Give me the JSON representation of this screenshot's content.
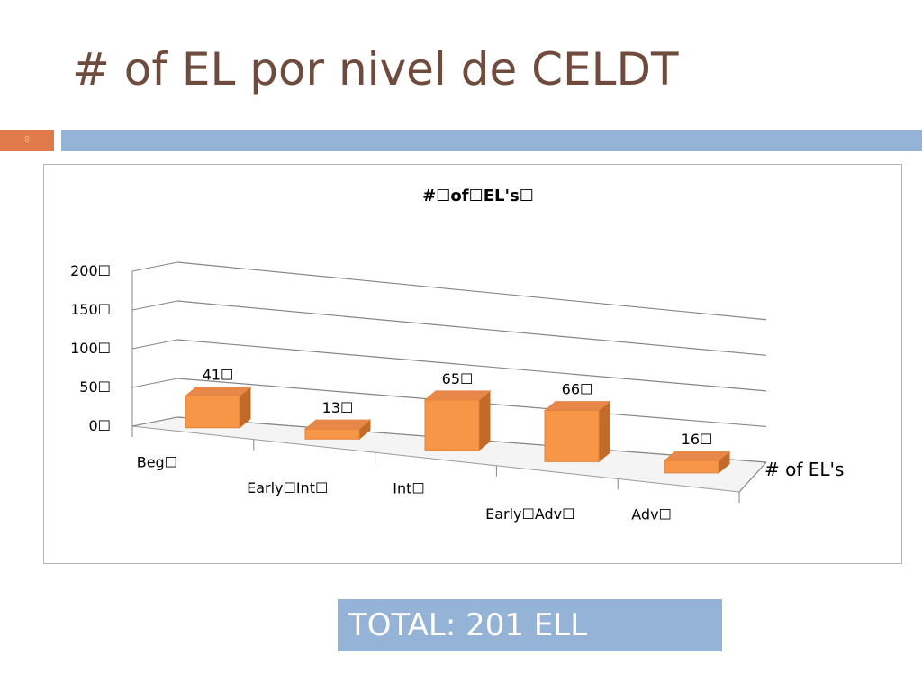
{
  "slide": {
    "title": "# of EL por nivel de CELDT",
    "number": "8",
    "total_label": "TOTAL: 201 ELL"
  },
  "colors": {
    "title": "#6f4b3e",
    "accent": "#e07a4a",
    "rule": "#95b3d7",
    "bar_front": "#f79646",
    "bar_top": "#e7884a",
    "bar_side": "#c26a27",
    "gridline": "#868686"
  },
  "chart_data": {
    "type": "bar",
    "title": "#☐of☐EL's☐",
    "categories": [
      "Beg☐",
      "Early☐Int☐",
      "Int☐",
      "Early☐Adv☐",
      "Adv☐"
    ],
    "series": [
      {
        "name": "# of EL's",
        "values": [
          41,
          13,
          65,
          66,
          16
        ],
        "labels": [
          "41☐",
          "13☐",
          "65☐",
          "66☐",
          "16☐"
        ]
      }
    ],
    "ylim": [
      0,
      200
    ],
    "yticks": [
      0,
      50,
      100,
      150,
      200
    ],
    "ytick_labels": [
      "0☐",
      "50☐",
      "100☐",
      "150☐",
      "200☐"
    ],
    "grid": true,
    "three_d": true
  }
}
